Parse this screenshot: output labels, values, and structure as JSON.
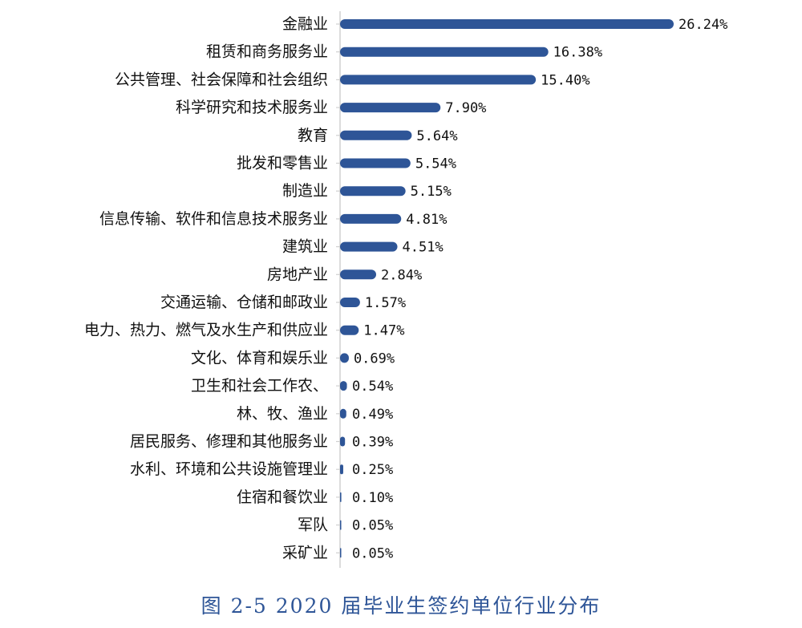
{
  "chart_data": {
    "type": "bar",
    "orientation": "horizontal",
    "title": "",
    "xlabel": "",
    "ylabel": "",
    "categories": [
      "金融业",
      "租赁和商务服务业",
      "公共管理、社会保障和社会组织",
      "科学研究和技术服务业",
      "教育",
      "批发和零售业",
      "制造业",
      "信息传输、软件和信息技术服务业",
      "建筑业",
      "房地产业",
      "交通运输、仓储和邮政业",
      "电力、热力、燃气及水生产和供应业",
      "文化、体育和娱乐业",
      "卫生和社会工作农、",
      "林、牧、渔业",
      "居民服务、修理和其他服务业",
      "水利、环境和公共设施管理业",
      "住宿和餐饮业",
      "军队",
      "采矿业"
    ],
    "values": [
      26.24,
      16.38,
      15.4,
      7.9,
      5.64,
      5.54,
      5.15,
      4.81,
      4.51,
      2.84,
      1.57,
      1.47,
      0.69,
      0.54,
      0.49,
      0.39,
      0.25,
      0.1,
      0.05,
      0.05
    ],
    "value_labels": [
      "26.24%",
      "16.38%",
      "15.40%",
      "7.90%",
      "5.64%",
      "5.54%",
      "5.15%",
      "4.81%",
      "4.51%",
      "2.84%",
      "1.57%",
      "1.47%",
      "0.69%",
      "0.54%",
      "0.49%",
      "0.39%",
      "0.25%",
      "0.10%",
      "0.05%",
      "0.05%"
    ],
    "unit": "%",
    "xlim": [
      0,
      26.24
    ],
    "grid": false,
    "legend": "none",
    "bar_color": "#2e5597",
    "axis_color": "#d0d0d0"
  },
  "caption": "图 2-5 2020 届毕业生签约单位行业分布",
  "caption_color": "#2e5597"
}
